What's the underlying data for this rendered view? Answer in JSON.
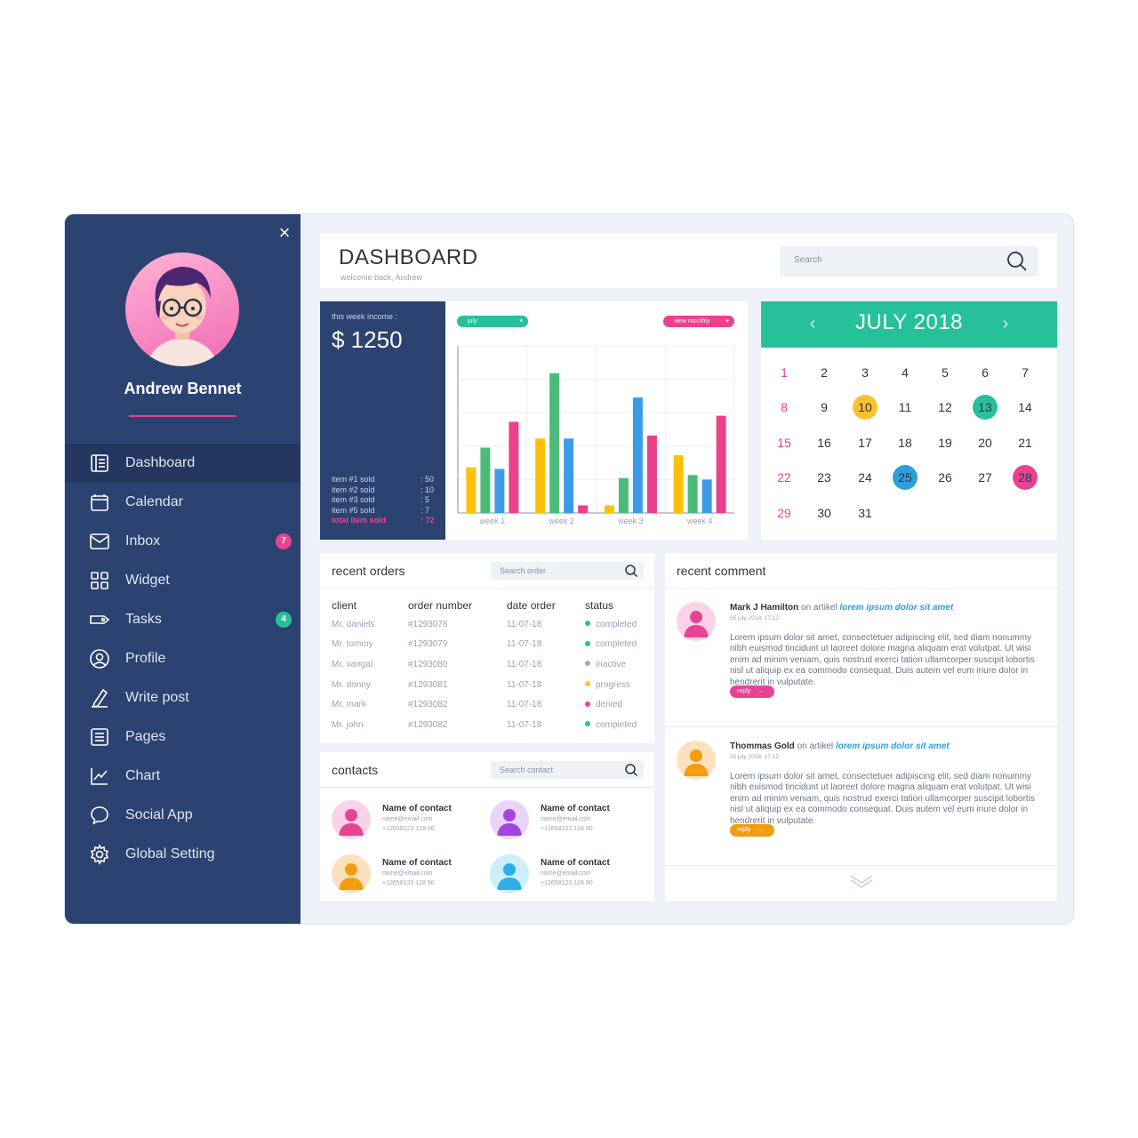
{
  "colors": {
    "sidebar": "#2c4270",
    "sidebar_active": "#24385f",
    "accent_pink": "#e84393",
    "accent_green": "#26c19a",
    "accent_yellow": "#fbc02d",
    "accent_blue": "#2e9fd8",
    "bar_yellow": "#ffc107",
    "bar_green": "#4cbb7a",
    "bar_blue": "#3d9ae8",
    "bar_pink": "#ec3f8c"
  },
  "sidebar": {
    "close_label": "×",
    "user_name": "Andrew Bennet",
    "items": [
      {
        "label": "Dashboard",
        "icon": "dashboard-icon",
        "active": true
      },
      {
        "label": "Calendar",
        "icon": "calendar-icon"
      },
      {
        "label": "Inbox",
        "icon": "mail-icon",
        "badge": "7",
        "badge_color": "#e84393"
      },
      {
        "label": "Widget",
        "icon": "widget-icon"
      },
      {
        "label": "Tasks",
        "icon": "tag-icon",
        "badge": "4",
        "badge_color": "#26c19a"
      },
      {
        "label": "Profile",
        "icon": "profile-icon"
      },
      {
        "label": "Write post",
        "icon": "pencil-icon"
      },
      {
        "label": "Pages",
        "icon": "pages-icon"
      },
      {
        "label": "Chart",
        "icon": "chart-icon"
      },
      {
        "label": "Social App",
        "icon": "chat-bubble-icon"
      },
      {
        "label": "Global Setting",
        "icon": "gear-icon"
      }
    ]
  },
  "header": {
    "title": "DASHBOARD",
    "subtitle": "welcome back, Andrew",
    "search_placeholder": "Search"
  },
  "income": {
    "label": "this week income :",
    "value": "$ 1250",
    "sold": [
      {
        "item": "item #1 sold",
        "count": ": 50"
      },
      {
        "item": "item #2 sold",
        "count": ": 10"
      },
      {
        "item": "item #3 sold",
        "count": ": 5"
      },
      {
        "item": "item #5 sold",
        "count": ": 7"
      }
    ],
    "total_label": "total item sold",
    "total_value": ": 72"
  },
  "chart_controls": {
    "month_label": "july",
    "view_label": "view monthly"
  },
  "chart_data": {
    "type": "bar",
    "categories": [
      "week 1",
      "week 2",
      "week 3",
      "week 4"
    ],
    "ylim": [
      0,
      11
    ],
    "grid": true,
    "series": [
      {
        "color": "#ffc107",
        "values": [
          3.0,
          4.9,
          0.5,
          3.8
        ]
      },
      {
        "color": "#4cbb7a",
        "values": [
          4.3,
          9.2,
          2.3,
          2.5
        ]
      },
      {
        "color": "#3d9ae8",
        "values": [
          2.9,
          4.9,
          7.6,
          2.2
        ]
      },
      {
        "color": "#ec3f8c",
        "values": [
          6.0,
          0.5,
          5.1,
          6.4
        ]
      }
    ]
  },
  "calendar": {
    "title": "JULY 2018",
    "prev_label": "‹",
    "next_label": "›",
    "days": [
      "1",
      "2",
      "3",
      "4",
      "5",
      "6",
      "7",
      "8",
      "9",
      "10",
      "11",
      "12",
      "13",
      "14",
      "15",
      "16",
      "17",
      "18",
      "19",
      "20",
      "21",
      "22",
      "23",
      "24",
      "25",
      "26",
      "27",
      "28",
      "29",
      "30",
      "31"
    ],
    "highlights": {
      "10": "#fbc02d",
      "13": "#26c19a",
      "25": "#2e9fd8",
      "28": "#e84393"
    }
  },
  "orders": {
    "title": "recent orders",
    "search_placeholder": "Search order",
    "columns": [
      "client",
      "order number",
      "date order",
      "status"
    ],
    "rows": [
      {
        "client": "Mr. daniels",
        "order": "#1293078",
        "date": "11-07-18",
        "status": "completed",
        "status_color": "#26c19a"
      },
      {
        "client": "Mr. tommy",
        "order": "#1293079",
        "date": "11-07-18",
        "status": "completed",
        "status_color": "#26c19a"
      },
      {
        "client": "Mr. vangal",
        "order": "#1293080",
        "date": "11-07-18",
        "status": "inactive",
        "status_color": "#a4abb8"
      },
      {
        "client": "Mr. donny",
        "order": "#1293081",
        "date": "11-07-18",
        "status": "progress",
        "status_color": "#fbc02d"
      },
      {
        "client": "Mr. mark",
        "order": "#1293082",
        "date": "11-07-18",
        "status": "denied",
        "status_color": "#e84393"
      },
      {
        "client": "Mr. john",
        "order": "#1293082",
        "date": "11-07-18",
        "status": "completed",
        "status_color": "#26c19a"
      }
    ]
  },
  "contacts": {
    "title": "contacts",
    "search_placeholder": "Search contact",
    "items": [
      {
        "name": "Name of contact",
        "email": "name@email.com",
        "phone": "+12658123 128 90",
        "color": "#e84393",
        "bg": "#fbd3e6"
      },
      {
        "name": "Name of contact",
        "email": "name@email.com",
        "phone": "+12658123 128 90",
        "color": "#a346e0",
        "bg": "#ead5fa"
      },
      {
        "name": "Name of contact",
        "email": "name@email.com",
        "phone": "+12658123 128 90",
        "color": "#f39c12",
        "bg": "#fde1bd"
      },
      {
        "name": "Name of contact",
        "email": "name@email.com",
        "phone": "+12658123 128 90",
        "color": "#2eaee8",
        "bg": "#cdeefb"
      }
    ]
  },
  "comments": {
    "title": "recent comment",
    "items": [
      {
        "author": "Mark J Hamilton",
        "middle": " on artikel ",
        "article": "lorem ipsum dolor sit amet",
        "date": "05 july 2018, 17:12",
        "text": "Lorem ipsum dolor sit amet, consectetuer adipiscing elit, sed diam nonummy nibh euismod tincidunt ut laoreet dolore magna aliquam erat volutpat. Ut wisi enim ad minim veniam, quis nostrud exerci tation ullamcorper suscipit lobortis nisl ut aliquip ex ea commodo consequat. Duis autem vel eum iriure dolor in hendrerit in vulputate.",
        "reply": "reply",
        "color": "#e84393",
        "bg": "#fbd3e6"
      },
      {
        "author": "Thommas Gold",
        "middle": " on artikel ",
        "article": "lorem ipsum dolor sit amet",
        "date": "05 july 2018, 17:12",
        "text": "Lorem ipsum dolor sit amet, consectetuer adipiscing elit, sed diam nonummy nibh euismod tincidunt ut laoreet dolore magna aliquam erat volutpat. Ut wisi enim ad minim veniam, quis nostrud exerci tation ullamcorper suscipit lobortis nisl ut aliquip ex ea commodo consequat. Duis autem vel eum iriure dolor in hendrerit in vulputate.",
        "reply": "reply",
        "color": "#f39c12",
        "bg": "#fde1bd"
      }
    ]
  }
}
